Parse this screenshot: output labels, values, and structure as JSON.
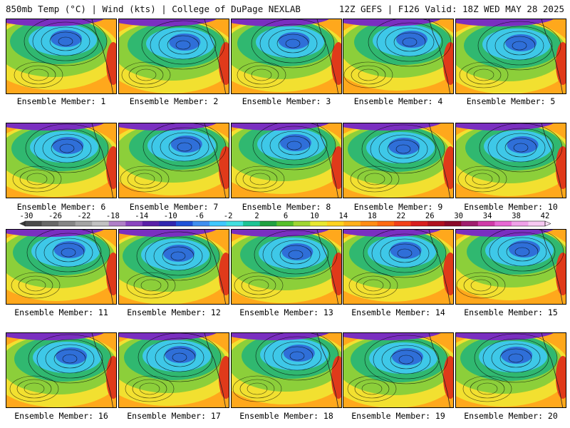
{
  "header": {
    "left": "850mb Temp (°C) | Wind (kts) | College of DuPage NEXLAB",
    "right": "12Z GEFS | F126 Valid: 18Z WED MAY 28 2025"
  },
  "members": [
    "Ensemble Member: 1",
    "Ensemble Member: 2",
    "Ensemble Member: 3",
    "Ensemble Member: 4",
    "Ensemble Member: 5",
    "Ensemble Member: 6",
    "Ensemble Member: 7",
    "Ensemble Member: 8",
    "Ensemble Member: 9",
    "Ensemble Member: 10",
    "Ensemble Member: 11",
    "Ensemble Member: 12",
    "Ensemble Member: 13",
    "Ensemble Member: 14",
    "Ensemble Member: 15",
    "Ensemble Member: 16",
    "Ensemble Member: 17",
    "Ensemble Member: 18",
    "Ensemble Member: 19",
    "Ensemble Member: 20"
  ],
  "colorbar": {
    "ticks": [
      "-30",
      "-26",
      "-22",
      "-18",
      "-14",
      "-10",
      "-6",
      "-2",
      "2",
      "6",
      "10",
      "14",
      "18",
      "22",
      "26",
      "30",
      "34",
      "38",
      "42"
    ],
    "colors": [
      "#4a4a4a",
      "#686868",
      "#868686",
      "#a4a4a4",
      "#c2c2c2",
      "#b07fc8",
      "#8b44c0",
      "#5a1fa8",
      "#3026b0",
      "#1f52d8",
      "#3f8ff0",
      "#3fc8ff",
      "#42e0e0",
      "#1cc494",
      "#20a040",
      "#55bf2a",
      "#9fd632",
      "#e8e830",
      "#ffd21e",
      "#ffb01a",
      "#ff8c14",
      "#ff6a10",
      "#f24018",
      "#d81e1e",
      "#b0101e",
      "#8a0a28",
      "#a01e6e",
      "#d03aa8",
      "#e868d4",
      "#f0a0e8",
      "#f7c8f2"
    ]
  },
  "map_colors": {
    "polar": "#7a2fc0",
    "cold": "#2f6fd8",
    "cool": "#3ec8e8",
    "mild": "#30b870",
    "warm_green": "#8ccf3a",
    "yellow": "#f2e030",
    "orange": "#ffa81c",
    "hot": "#e03a1a"
  }
}
